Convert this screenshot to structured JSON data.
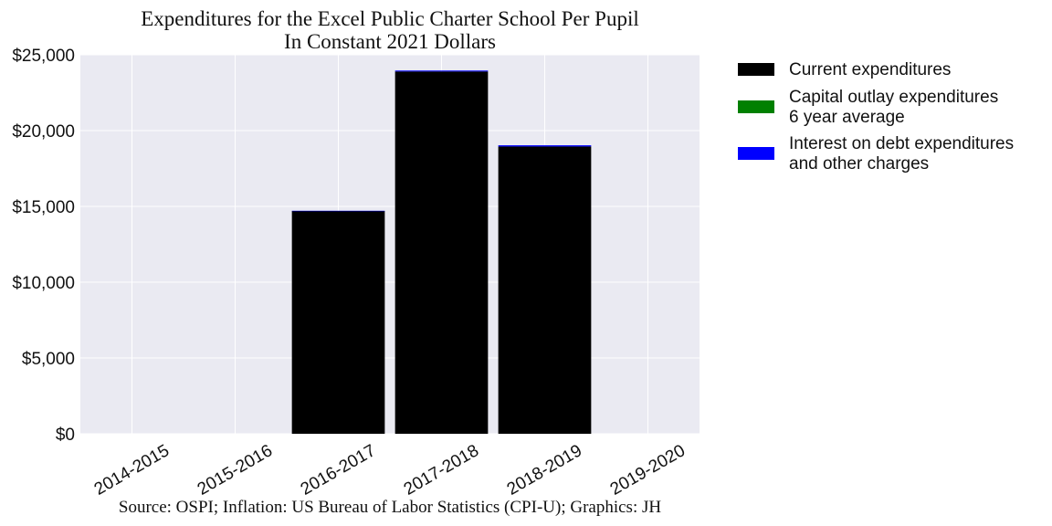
{
  "chart_data": {
    "type": "bar",
    "stacked": true,
    "title": "Expenditures for the Excel Public Charter School Per Pupil",
    "subtitle": "In Constant 2021 Dollars",
    "source": "Source: OSPI; Inflation: US Bureau of Labor Statistics (CPI-U); Graphics: JH",
    "categories": [
      "2014-2015",
      "2015-2016",
      "2016-2017",
      "2017-2018",
      "2018-2019",
      "2019-2020"
    ],
    "series": [
      {
        "name": "Current expenditures",
        "color": "#000000",
        "values": [
          0,
          0,
          14700,
          23900,
          18950,
          0
        ]
      },
      {
        "name": "Capital outlay expenditures\n6 year average",
        "color": "#008000",
        "values": [
          0,
          0,
          0,
          0,
          0,
          0
        ]
      },
      {
        "name": "Interest on debt expenditures\nand other charges",
        "color": "#0000ff",
        "values": [
          0,
          0,
          10,
          60,
          80,
          0
        ]
      }
    ],
    "ylim": [
      0,
      25000
    ],
    "yticks": [
      0,
      5000,
      10000,
      15000,
      20000,
      25000
    ],
    "ytick_labels": [
      "$0",
      "$5,000",
      "$10,000",
      "$15,000",
      "$20,000",
      "$25,000"
    ],
    "xlabel": "",
    "ylabel": "",
    "grid": true,
    "legend_position": "outside-right"
  }
}
